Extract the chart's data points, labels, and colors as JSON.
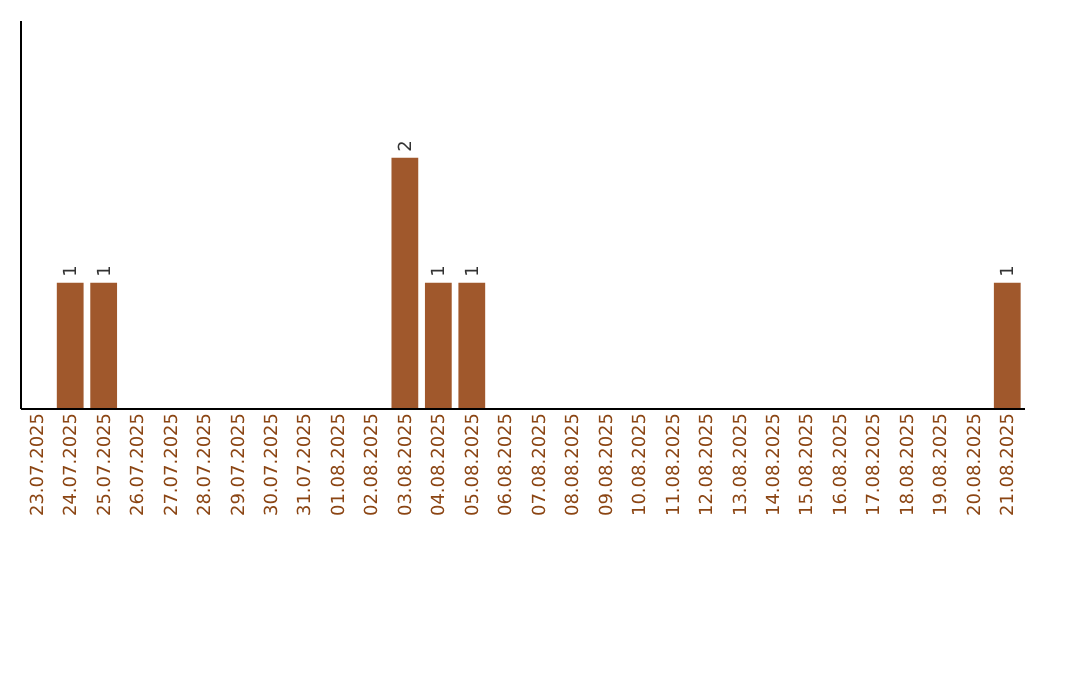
{
  "chart_data": {
    "type": "bar",
    "categories": [
      "23.07.2025",
      "24.07.2025",
      "25.07.2025",
      "26.07.2025",
      "27.07.2025",
      "28.07.2025",
      "29.07.2025",
      "30.07.2025",
      "31.07.2025",
      "01.08.2025",
      "02.08.2025",
      "03.08.2025",
      "04.08.2025",
      "05.08.2025",
      "06.08.2025",
      "07.08.2025",
      "08.08.2025",
      "09.08.2025",
      "10.08.2025",
      "11.08.2025",
      "12.08.2025",
      "13.08.2025",
      "14.08.2025",
      "15.08.2025",
      "16.08.2025",
      "17.08.2025",
      "18.08.2025",
      "19.08.2025",
      "20.08.2025",
      "21.08.2025"
    ],
    "values": [
      0,
      1,
      1,
      0,
      0,
      0,
      0,
      0,
      0,
      0,
      0,
      2,
      1,
      1,
      0,
      0,
      0,
      0,
      0,
      0,
      0,
      0,
      0,
      0,
      0,
      0,
      0,
      0,
      0,
      1
    ],
    "value_labels": [
      null,
      "1",
      "1",
      null,
      null,
      null,
      null,
      null,
      null,
      null,
      null,
      "2",
      "1",
      "1",
      null,
      null,
      null,
      null,
      null,
      null,
      null,
      null,
      null,
      null,
      null,
      null,
      null,
      null,
      null,
      "1"
    ],
    "color": "#a0582c",
    "ylim": [
      0,
      3.1
    ],
    "tick_labels": "x",
    "grid": false
  }
}
